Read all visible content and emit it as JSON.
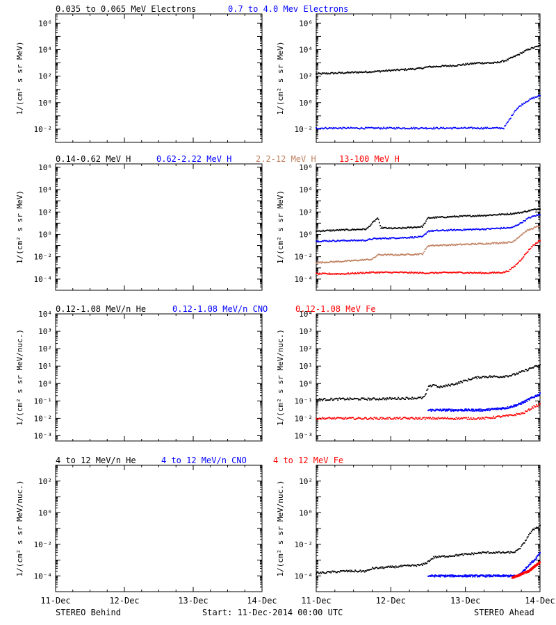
{
  "colors": {
    "black": "#000000",
    "blue": "#0000ff",
    "tan": "#c08060",
    "red": "#ff0000"
  },
  "footer": {
    "left": "STEREO Behind",
    "center": "Start: 11-Dec-2014 00:00 UTC",
    "right": "STEREO Ahead"
  },
  "chart_data": [
    {
      "type": "scatter",
      "side": "behind",
      "row": 0,
      "yscale": "log",
      "ylabel": "1/(cm² s sr MeV)",
      "yticks": [
        {
          "exp": -2,
          "label": "10⁻²"
        },
        {
          "exp": 0,
          "label": "10⁰"
        },
        {
          "exp": 2,
          "label": "10²"
        },
        {
          "exp": 4,
          "label": "10⁴"
        },
        {
          "exp": 6,
          "label": "10⁶"
        }
      ],
      "ylim": [
        0.001,
        5000000
      ],
      "xlabels": [],
      "legend": [
        {
          "text": "0.035 to 0.065 MeV Electrons",
          "color": "#000000"
        },
        {
          "text": "0.7 to 4.0 Mev Electrons",
          "color": "#0000ff"
        }
      ],
      "series": []
    },
    {
      "type": "scatter",
      "side": "ahead",
      "row": 0,
      "yscale": "log",
      "ylabel": "1/(cm² s sr MeV)",
      "yticks": [
        {
          "exp": -2,
          "label": "10⁻²"
        },
        {
          "exp": 0,
          "label": "10⁰"
        },
        {
          "exp": 2,
          "label": "10²"
        },
        {
          "exp": 4,
          "label": "10⁴"
        },
        {
          "exp": 6,
          "label": "10⁶"
        }
      ],
      "ylim": [
        0.001,
        5000000
      ],
      "xlabels": [],
      "legend": [],
      "series": [
        {
          "color": "#000000",
          "x": [
            0,
            0.5,
            1.0,
            1.5,
            1.85,
            2.0,
            2.5,
            2.8,
            2.9,
            3.0,
            3.2,
            3.4,
            3.6,
            3.8,
            4.0
          ],
          "y": [
            150,
            180,
            220,
            300,
            380,
            500,
            650,
            900,
            1000,
            1000,
            1000,
            1600,
            4000,
            11000,
            20000
          ]
        },
        {
          "color": "#0000ff",
          "x": [
            0,
            0.5,
            1.0,
            1.5,
            2.0,
            2.5,
            3.0,
            3.35,
            3.45,
            3.55,
            3.65,
            3.75,
            3.85,
            4.0
          ],
          "y": [
            0.012,
            0.012,
            0.012,
            0.012,
            0.012,
            0.012,
            0.012,
            0.012,
            0.05,
            0.25,
            0.6,
            1.2,
            2.0,
            3.5
          ]
        }
      ]
    },
    {
      "type": "scatter",
      "side": "behind",
      "row": 1,
      "yscale": "log",
      "ylabel": "1/(cm² s sr MeV)",
      "yticks": [
        {
          "exp": -4,
          "label": "10⁻⁴"
        },
        {
          "exp": -2,
          "label": "10⁻²"
        },
        {
          "exp": 0,
          "label": "10⁰"
        },
        {
          "exp": 2,
          "label": "10²"
        },
        {
          "exp": 4,
          "label": "10⁴"
        },
        {
          "exp": 6,
          "label": "10⁶"
        }
      ],
      "ylim": [
        1e-05,
        2000000
      ],
      "xlabels": [],
      "legend": [
        {
          "text": "0.14-0.62 MeV H",
          "color": "#000000"
        },
        {
          "text": "0.62-2.22 MeV H",
          "color": "#0000ff"
        },
        {
          "text": "2.2-12 MeV H",
          "color": "#c08060"
        },
        {
          "text": "13-100 MeV H",
          "color": "#ff0000"
        }
      ],
      "series": []
    },
    {
      "type": "scatter",
      "side": "ahead",
      "row": 1,
      "yscale": "log",
      "ylabel": "1/(cm² s sr MeV)",
      "yticks": [
        {
          "exp": -4,
          "label": "10⁻⁴"
        },
        {
          "exp": -2,
          "label": "10⁻²"
        },
        {
          "exp": 0,
          "label": "10⁰"
        },
        {
          "exp": 2,
          "label": "10²"
        },
        {
          "exp": 4,
          "label": "10⁴"
        },
        {
          "exp": 6,
          "label": "10⁶"
        }
      ],
      "ylim": [
        1e-05,
        2000000
      ],
      "xlabels": [],
      "legend": [],
      "series": [
        {
          "color": "#000000",
          "x": [
            0,
            0.5,
            0.9,
            1.0,
            1.1,
            1.15,
            1.3,
            1.5,
            1.9,
            2.0,
            2.5,
            3.0,
            3.5,
            3.7,
            3.85,
            4.0
          ],
          "y": [
            2,
            2.5,
            3,
            10,
            30,
            4,
            3.5,
            3.5,
            5,
            30,
            40,
            50,
            70,
            100,
            150,
            200
          ]
        },
        {
          "color": "#0000ff",
          "x": [
            0,
            0.5,
            0.9,
            1.0,
            1.5,
            1.9,
            2.0,
            2.5,
            3.0,
            3.5,
            3.65,
            3.8,
            3.9,
            4.0
          ],
          "y": [
            0.25,
            0.28,
            0.3,
            0.4,
            0.5,
            0.6,
            2,
            2.5,
            3,
            4,
            10,
            30,
            45,
            60
          ]
        },
        {
          "color": "#c08060",
          "x": [
            0,
            0.5,
            1.0,
            1.1,
            1.5,
            1.9,
            2.0,
            2.5,
            3.0,
            3.5,
            3.65,
            3.75,
            3.9,
            4.0
          ],
          "y": [
            0.003,
            0.004,
            0.006,
            0.015,
            0.015,
            0.018,
            0.1,
            0.12,
            0.15,
            0.2,
            0.8,
            2,
            4,
            6
          ]
        },
        {
          "color": "#ff0000",
          "x": [
            0,
            0.5,
            1.0,
            1.5,
            2.0,
            2.5,
            3.0,
            3.35,
            3.45,
            3.55,
            3.65,
            3.75,
            3.85,
            4.0
          ],
          "y": [
            0.0003,
            0.0003,
            0.0004,
            0.0004,
            0.00035,
            0.0004,
            0.00035,
            0.0004,
            0.0006,
            0.0015,
            0.005,
            0.02,
            0.08,
            0.3
          ]
        }
      ]
    },
    {
      "type": "scatter",
      "side": "behind",
      "row": 2,
      "yscale": "log",
      "ylabel": "1/(cm² s sr MeV/nuc.)",
      "yticks": [
        {
          "exp": -3,
          "label": "10⁻³"
        },
        {
          "exp": -2,
          "label": "10⁻²"
        },
        {
          "exp": -1,
          "label": "10⁻¹"
        },
        {
          "exp": 0,
          "label": "10⁰"
        },
        {
          "exp": 1,
          "label": "10¹"
        },
        {
          "exp": 2,
          "label": "10²"
        },
        {
          "exp": 3,
          "label": "10³"
        },
        {
          "exp": 4,
          "label": "10⁴"
        }
      ],
      "ylim": [
        0.0005,
        10000
      ],
      "xlabels": [],
      "legend": [
        {
          "text": "0.12-1.08 MeV/n He",
          "color": "#000000"
        },
        {
          "text": "0.12-1.08 MeV/n CNO",
          "color": "#0000ff"
        },
        {
          "text": "0.12-1.08 MeV Fe",
          "color": "#ff0000"
        }
      ],
      "series": []
    },
    {
      "type": "scatter",
      "side": "ahead",
      "row": 2,
      "yscale": "log",
      "ylabel": "1/(cm² s sr MeV/nuc.)",
      "yticks": [
        {
          "exp": -3,
          "label": "10⁻³"
        },
        {
          "exp": -2,
          "label": "10⁻²"
        },
        {
          "exp": -1,
          "label": "10⁻¹"
        },
        {
          "exp": 0,
          "label": "10⁰"
        },
        {
          "exp": 1,
          "label": "10¹"
        },
        {
          "exp": 2,
          "label": "10²"
        },
        {
          "exp": 3,
          "label": "10³"
        },
        {
          "exp": 4,
          "label": "10⁴"
        }
      ],
      "ylim": [
        0.0005,
        10000
      ],
      "xlabels": [],
      "legend": [],
      "series": [
        {
          "color": "#000000",
          "x": [
            0,
            0.5,
            1.0,
            1.5,
            1.9,
            1.95,
            2.0,
            2.1,
            2.2,
            2.5,
            2.8,
            3.0,
            3.3,
            3.5,
            3.7,
            3.85,
            4.0
          ],
          "y": [
            0.12,
            0.13,
            0.13,
            0.14,
            0.15,
            0.2,
            0.6,
            0.9,
            0.6,
            1.0,
            2.0,
            2.5,
            2.5,
            3.0,
            5.0,
            8.0,
            11.0
          ]
        },
        {
          "color": "#0000ff",
          "x": [
            2.0,
            2.5,
            3.0,
            3.4,
            3.6,
            3.75,
            3.85,
            4.0
          ],
          "y": [
            0.03,
            0.03,
            0.03,
            0.04,
            0.06,
            0.1,
            0.15,
            0.25
          ]
        },
        {
          "color": "#ff0000",
          "x": [
            0,
            0.5,
            1.0,
            1.5,
            2.0,
            2.5,
            3.0,
            3.5,
            3.7,
            3.8,
            3.9,
            4.0
          ],
          "y": [
            0.01,
            0.01,
            0.01,
            0.01,
            0.01,
            0.01,
            0.01,
            0.015,
            0.02,
            0.03,
            0.05,
            0.06
          ]
        }
      ]
    },
    {
      "type": "scatter",
      "side": "behind",
      "row": 3,
      "yscale": "log",
      "ylabel": "1/(cm² s sr MeV/nuc.)",
      "yticks": [
        {
          "exp": -4,
          "label": "10⁻⁴"
        },
        {
          "exp": -2,
          "label": "10⁻²"
        },
        {
          "exp": 0,
          "label": "10⁰"
        },
        {
          "exp": 2,
          "label": "10²"
        }
      ],
      "ylim": [
        1e-05,
        1000
      ],
      "xlabels": [
        "11-Dec",
        "12-Dec",
        "13-Dec",
        "14-Dec"
      ],
      "legend": [
        {
          "text": "4 to 12 MeV/n He",
          "color": "#000000"
        },
        {
          "text": "4 to 12 MeV/n CNO",
          "color": "#0000ff"
        },
        {
          "text": "4 to 12 MeV Fe",
          "color": "#ff0000"
        }
      ],
      "series": []
    },
    {
      "type": "scatter",
      "side": "ahead",
      "row": 3,
      "yscale": "log",
      "ylabel": "1/(cm² s sr MeV/nuc.)",
      "yticks": [
        {
          "exp": -4,
          "label": "10⁻⁴"
        },
        {
          "exp": -2,
          "label": "10⁻²"
        },
        {
          "exp": 0,
          "label": "10⁰"
        },
        {
          "exp": 2,
          "label": "10²"
        }
      ],
      "ylim": [
        1e-05,
        1000
      ],
      "xlabels": [
        "11-Dec",
        "12-Dec",
        "13-Dec",
        "14-Dec"
      ],
      "legend": [],
      "series": [
        {
          "color": "#000000",
          "x": [
            0,
            0.5,
            0.9,
            1.0,
            1.5,
            1.9,
            2.0,
            2.1,
            2.5,
            3.0,
            3.5,
            3.6,
            3.7,
            3.8,
            3.9,
            4.0
          ],
          "y": [
            0.00015,
            0.0002,
            0.0002,
            0.0003,
            0.0004,
            0.0005,
            0.0008,
            0.0015,
            0.002,
            0.003,
            0.003,
            0.004,
            0.01,
            0.04,
            0.1,
            0.15
          ]
        },
        {
          "color": "#0000ff",
          "x": [
            2.0,
            2.5,
            3.0,
            3.4,
            3.6,
            3.7,
            3.8,
            3.9,
            4.0
          ],
          "y": [
            0.0001,
            0.0001,
            0.0001,
            0.0001,
            0.0001,
            0.0002,
            0.0005,
            0.001,
            0.003
          ]
        },
        {
          "color": "#ff0000",
          "x": [
            3.5,
            3.6,
            3.7,
            3.8,
            3.9,
            4.0
          ],
          "y": [
            8e-05,
            0.0001,
            0.00015,
            0.0002,
            0.0004,
            0.0007
          ]
        }
      ]
    }
  ]
}
